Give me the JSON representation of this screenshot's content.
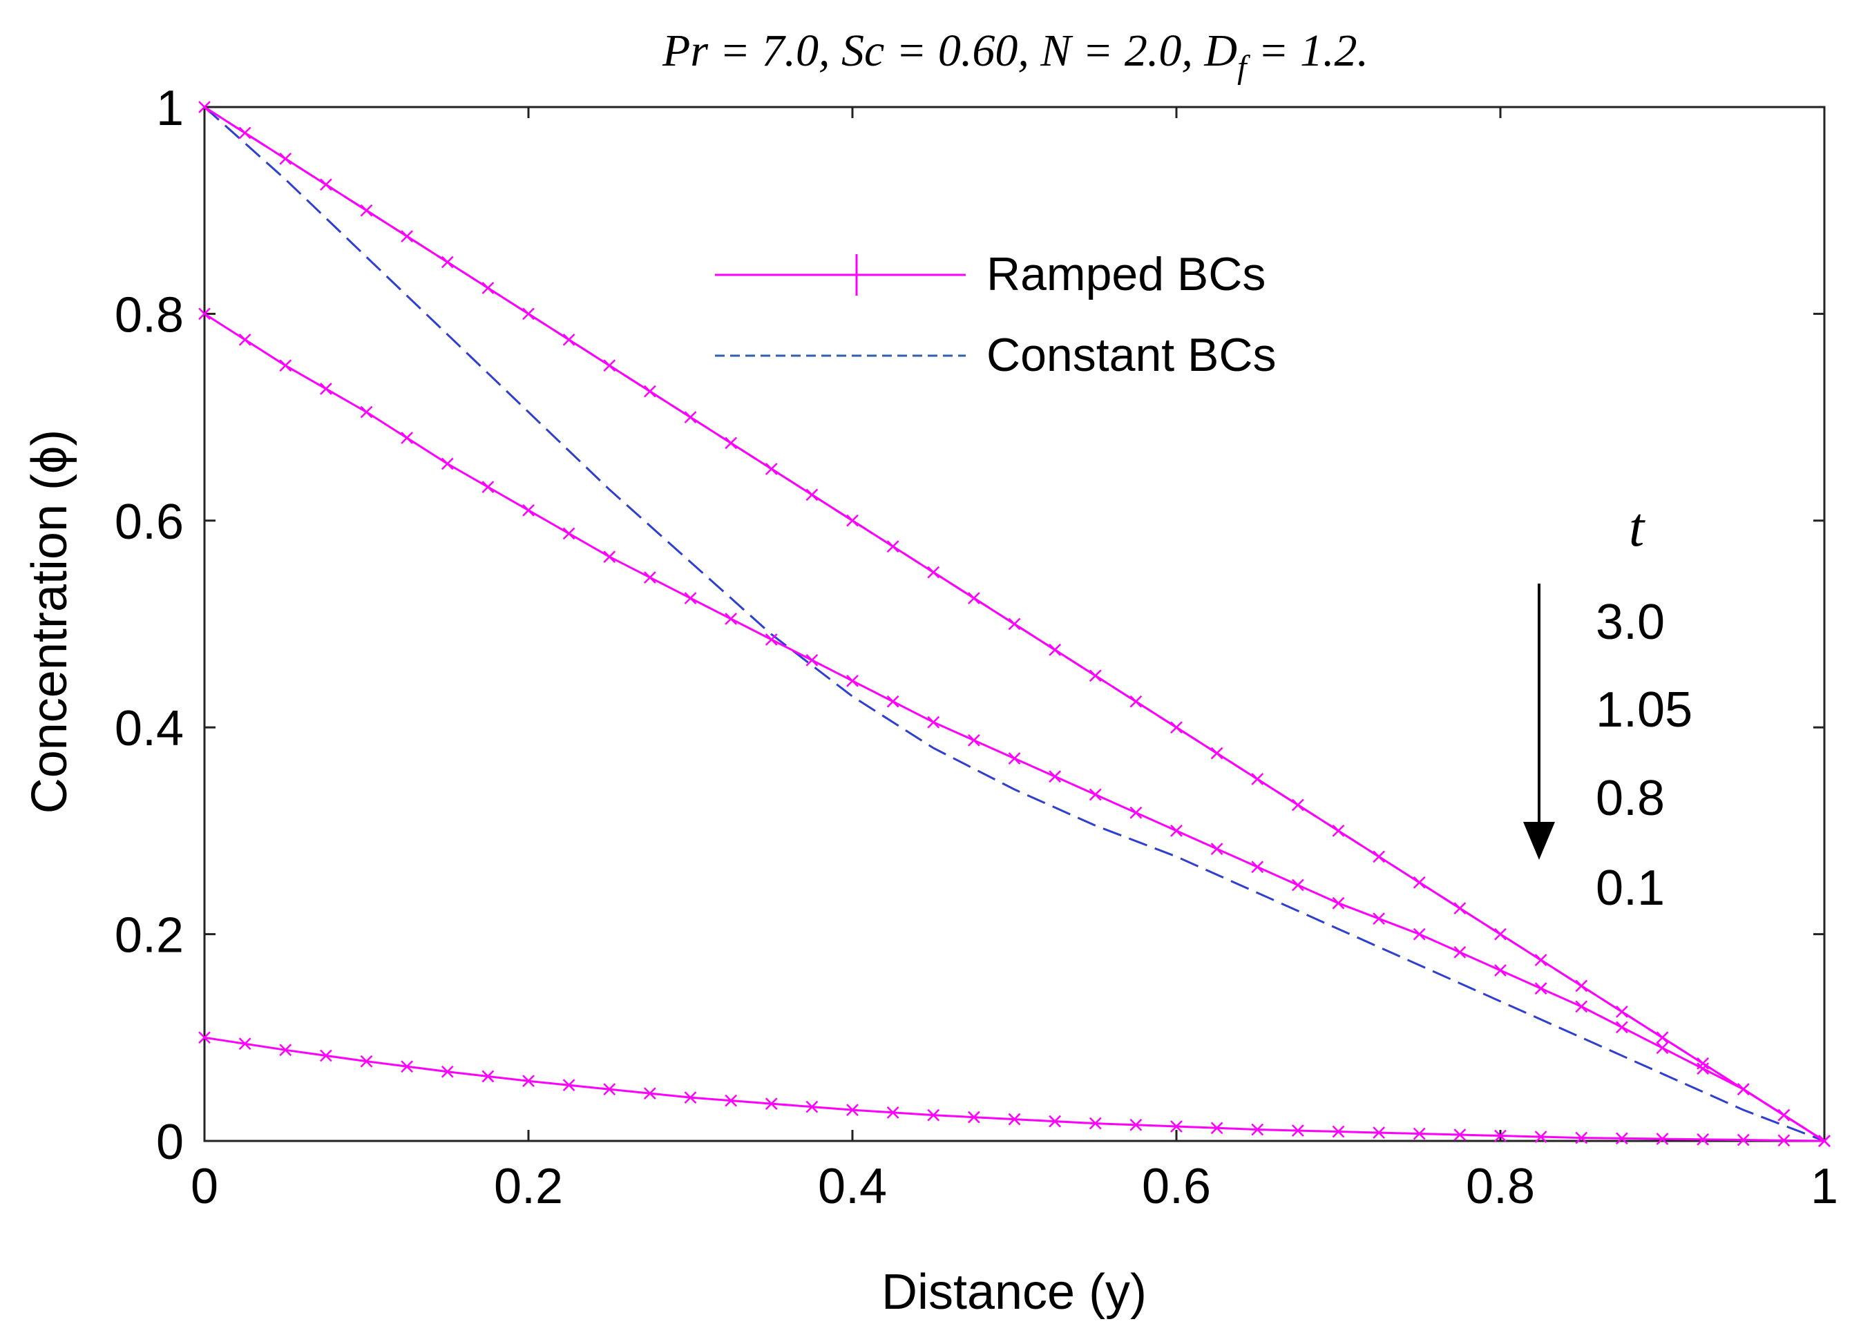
{
  "chart_data": {
    "type": "line",
    "title": "Pr = 7.0, Sc = 0.60, N = 2.0,  Df = 1.2.",
    "title_parts": {
      "prefix": "Pr = 7.0, Sc = 0.60, N = 2.0,  D",
      "subscript": "f",
      "suffix": " = 1.2."
    },
    "xlabel": "Distance (y)",
    "ylabel": "Concentration (ϕ)",
    "xlim": [
      0,
      1
    ],
    "ylim": [
      0,
      1
    ],
    "xticks": [
      "0",
      "0.2",
      "0.4",
      "0.6",
      "0.8",
      "1"
    ],
    "yticks": [
      "0",
      "0.2",
      "0.4",
      "0.6",
      "0.8",
      "1"
    ],
    "legend": {
      "placement": "top-center",
      "entries": [
        {
          "label": "Ramped BCs",
          "style": "solid-marker"
        },
        {
          "label": "Constant BCs",
          "style": "dashed"
        }
      ]
    },
    "annotation": {
      "variable": "t",
      "values": [
        "3.0",
        "1.05",
        "0.8",
        "0.1"
      ],
      "direction": "decreasing"
    },
    "x": [
      0,
      0.05,
      0.1,
      0.15,
      0.2,
      0.25,
      0.3,
      0.35,
      0.4,
      0.45,
      0.5,
      0.55,
      0.6,
      0.65,
      0.7,
      0.75,
      0.8,
      0.85,
      0.9,
      0.95,
      1.0
    ],
    "series": [
      {
        "name": "Constant BCs, t = 3.0",
        "style": "dashed",
        "color": "#2f3fd0",
        "values": [
          1.0,
          0.95,
          0.9,
          0.85,
          0.8,
          0.75,
          0.7,
          0.65,
          0.6,
          0.55,
          0.5,
          0.45,
          0.4,
          0.35,
          0.3,
          0.25,
          0.2,
          0.15,
          0.1,
          0.05,
          0.0
        ]
      },
      {
        "name": "Constant BCs, t = 1.05",
        "style": "dashed",
        "color": "#2f3fd0",
        "values": [
          1.0,
          0.93,
          0.855,
          0.78,
          0.705,
          0.63,
          0.56,
          0.49,
          0.43,
          0.38,
          0.34,
          0.305,
          0.275,
          0.24,
          0.205,
          0.17,
          0.135,
          0.1,
          0.065,
          0.03,
          0.0
        ]
      },
      {
        "name": "Ramped BCs, t = 3.0",
        "style": "solid-marker",
        "color": "#ff00ff",
        "values": [
          1.0,
          0.95,
          0.9,
          0.85,
          0.8,
          0.75,
          0.7,
          0.65,
          0.6,
          0.55,
          0.5,
          0.45,
          0.4,
          0.35,
          0.3,
          0.25,
          0.2,
          0.15,
          0.1,
          0.05,
          0.0
        ]
      },
      {
        "name": "Ramped BCs, t = 0.8",
        "style": "solid-marker",
        "color": "#ff00ff",
        "values": [
          0.8,
          0.75,
          0.705,
          0.655,
          0.61,
          0.565,
          0.525,
          0.485,
          0.445,
          0.405,
          0.37,
          0.335,
          0.3,
          0.265,
          0.23,
          0.2,
          0.165,
          0.13,
          0.09,
          0.05,
          0.0
        ]
      },
      {
        "name": "Ramped BCs, t = 0.1",
        "style": "solid-marker",
        "color": "#ff00ff",
        "values": [
          0.1,
          0.088,
          0.077,
          0.067,
          0.058,
          0.05,
          0.042,
          0.036,
          0.03,
          0.025,
          0.021,
          0.017,
          0.014,
          0.011,
          0.009,
          0.007,
          0.005,
          0.003,
          0.002,
          0.001,
          0.0
        ]
      }
    ]
  }
}
